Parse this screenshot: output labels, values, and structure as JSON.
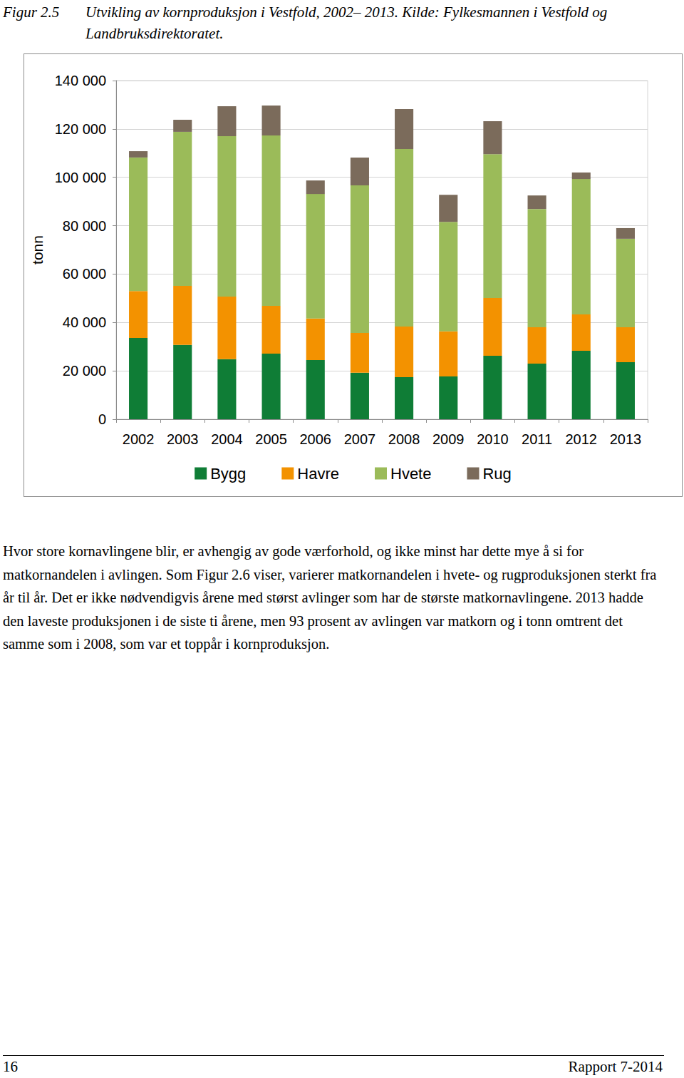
{
  "figure": {
    "label": "Figur 2.5",
    "caption": "Utvikling av kornproduksjon i Vestfold, 2002– 2013. Kilde: Fylkesmannen i Vestfold og Landbruksdirektoratet."
  },
  "chart_data": {
    "type": "bar",
    "stacked": true,
    "grid": true,
    "legend": "bottom",
    "ylabel": "tonn",
    "categories": [
      "2002",
      "2003",
      "2004",
      "2005",
      "2006",
      "2007",
      "2008",
      "2009",
      "2010",
      "2011",
      "2012",
      "2013"
    ],
    "series": [
      {
        "name": "Bygg",
        "color": "#0f7d36",
        "values": [
          33600,
          30700,
          24800,
          27100,
          24500,
          19200,
          17400,
          17700,
          26200,
          23000,
          28300,
          23600
        ]
      },
      {
        "name": "Havre",
        "color": "#f39200",
        "values": [
          19400,
          24400,
          25900,
          19800,
          17100,
          16500,
          20900,
          18600,
          23900,
          15000,
          15000,
          14400
        ]
      },
      {
        "name": "Hvete",
        "color": "#9bbb59",
        "values": [
          55200,
          63700,
          66300,
          70400,
          51500,
          61000,
          73400,
          45300,
          59500,
          48900,
          56000,
          36600
        ]
      },
      {
        "name": "Rug",
        "color": "#7b6b5b",
        "values": [
          2600,
          5000,
          12400,
          12400,
          5600,
          11500,
          16500,
          11200,
          13600,
          5600,
          2700,
          4400
        ]
      }
    ],
    "ylim": [
      0,
      140000
    ],
    "yticks": [
      0,
      {
        "value": 20000,
        "label": "20 000"
      },
      {
        "value": 40000,
        "label": "40 000"
      },
      {
        "value": 60000,
        "label": "60 000"
      },
      {
        "value": 80000,
        "label": "80 000"
      },
      {
        "value": 100000,
        "label": "100 000"
      },
      {
        "value": 120000,
        "label": "120 000"
      },
      {
        "value": 140000,
        "label": "140 000"
      }
    ]
  },
  "body": "Hvor store kornavlingene blir, er avhengig av gode værforhold, og ikke minst har dette mye å si for matkornandelen i avlingen. Som Figur 2.6 viser, varierer matkornandelen i hvete- og rugproduksjonen sterkt fra år til år. Det er ikke nødvendigvis årene med størst avlinger som har de største matkornavlingene. 2013 hadde den laveste produksjonen i de siste ti årene, men 93 prosent av avlingen var matkorn og i tonn omtrent det samme som i 2008, som var et toppår i kornproduksjon.",
  "footer": {
    "page": "16",
    "report": "Rapport 7-2014"
  }
}
